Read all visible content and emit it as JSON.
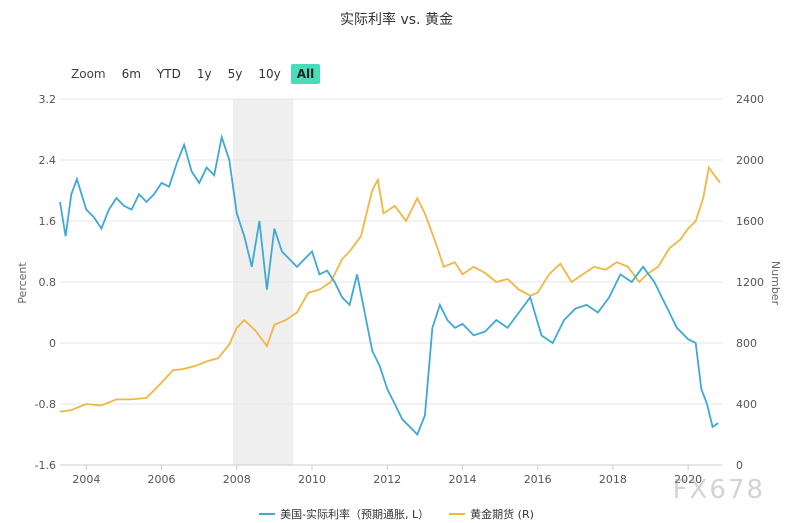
{
  "title": "实际利率 vs. 黄金",
  "zoom": {
    "label": "Zoom",
    "buttons": [
      "6m",
      "YTD",
      "1y",
      "5y",
      "10y",
      "All"
    ],
    "active": "All"
  },
  "watermark": "FX678",
  "colors": {
    "real_rate": "#3fa9d4",
    "gold": "#f2b743",
    "shade": "#efefef"
  },
  "chart_data": {
    "type": "line",
    "x_ticks": [
      "2004",
      "2006",
      "2008",
      "2010",
      "2012",
      "2014",
      "2016",
      "2018",
      "2020"
    ],
    "xlim": [
      2003.3,
      2020.9
    ],
    "shaded_region": [
      2007.9,
      2009.5
    ],
    "left_axis": {
      "label": "Percent",
      "ticks": [
        "3.2",
        "2.4",
        "1.6",
        "0.8",
        "0",
        "-0.8",
        "-1.6"
      ],
      "ylim": [
        -1.6,
        3.2
      ]
    },
    "right_axis": {
      "label": "Number",
      "ticks": [
        "2400",
        "2000",
        "1600",
        "1200",
        "800",
        "400",
        "0"
      ],
      "ylim": [
        0,
        2400
      ]
    },
    "grid": true,
    "legend_position": "bottom",
    "series": [
      {
        "name": "美国-实际利率（预期通胀, L）",
        "axis": "left",
        "x": [
          2003.3,
          2003.45,
          2003.6,
          2003.75,
          2004.0,
          2004.2,
          2004.4,
          2004.6,
          2004.8,
          2005.0,
          2005.2,
          2005.4,
          2005.6,
          2005.8,
          2006.0,
          2006.2,
          2006.4,
          2006.6,
          2006.8,
          2007.0,
          2007.2,
          2007.4,
          2007.6,
          2007.8,
          2008.0,
          2008.2,
          2008.4,
          2008.6,
          2008.8,
          2009.0,
          2009.2,
          2009.4,
          2009.6,
          2009.8,
          2010.0,
          2010.2,
          2010.4,
          2010.6,
          2010.8,
          2011.0,
          2011.2,
          2011.4,
          2011.6,
          2011.8,
          2012.0,
          2012.2,
          2012.4,
          2012.6,
          2012.8,
          2013.0,
          2013.2,
          2013.4,
          2013.6,
          2013.8,
          2014.0,
          2014.3,
          2014.6,
          2014.9,
          2015.2,
          2015.5,
          2015.8,
          2016.1,
          2016.4,
          2016.7,
          2017.0,
          2017.3,
          2017.6,
          2017.9,
          2018.2,
          2018.5,
          2018.8,
          2019.1,
          2019.4,
          2019.7,
          2020.0,
          2020.2,
          2020.35,
          2020.5,
          2020.65,
          2020.8
        ],
        "values": [
          1.85,
          1.4,
          1.95,
          2.15,
          1.75,
          1.65,
          1.5,
          1.75,
          1.9,
          1.8,
          1.75,
          1.95,
          1.85,
          1.95,
          2.1,
          2.05,
          2.35,
          2.6,
          2.25,
          2.1,
          2.3,
          2.2,
          2.7,
          2.4,
          1.7,
          1.4,
          1.0,
          1.6,
          0.7,
          1.5,
          1.2,
          1.1,
          1.0,
          1.1,
          1.2,
          0.9,
          0.95,
          0.8,
          0.6,
          0.5,
          0.9,
          0.4,
          -0.1,
          -0.3,
          -0.6,
          -0.8,
          -1.0,
          -1.1,
          -1.2,
          -0.95,
          0.2,
          0.5,
          0.3,
          0.2,
          0.25,
          0.1,
          0.15,
          0.3,
          0.2,
          0.4,
          0.6,
          0.1,
          0.0,
          0.3,
          0.45,
          0.5,
          0.4,
          0.6,
          0.9,
          0.8,
          1.0,
          0.8,
          0.5,
          0.2,
          0.05,
          0.0,
          -0.6,
          -0.8,
          -1.1,
          -1.05
        ]
      },
      {
        "name": "黄金期货 (R)",
        "axis": "right",
        "x": [
          2003.3,
          2003.6,
          2004.0,
          2004.4,
          2004.8,
          2005.2,
          2005.6,
          2006.0,
          2006.3,
          2006.6,
          2006.9,
          2007.2,
          2007.5,
          2007.8,
          2008.0,
          2008.2,
          2008.5,
          2008.8,
          2009.0,
          2009.3,
          2009.6,
          2009.9,
          2010.2,
          2010.5,
          2010.8,
          2011.0,
          2011.3,
          2011.6,
          2011.75,
          2011.9,
          2012.2,
          2012.5,
          2012.8,
          2013.0,
          2013.3,
          2013.5,
          2013.8,
          2014.0,
          2014.3,
          2014.6,
          2014.9,
          2015.2,
          2015.5,
          2015.8,
          2016.0,
          2016.3,
          2016.6,
          2016.9,
          2017.2,
          2017.5,
          2017.8,
          2018.1,
          2018.4,
          2018.7,
          2018.9,
          2019.2,
          2019.5,
          2019.8,
          2020.0,
          2020.2,
          2020.4,
          2020.55,
          2020.7,
          2020.85
        ],
        "values": [
          350,
          360,
          400,
          390,
          430,
          430,
          440,
          540,
          620,
          630,
          650,
          680,
          700,
          790,
          900,
          950,
          880,
          780,
          920,
          950,
          1000,
          1130,
          1150,
          1200,
          1350,
          1400,
          1500,
          1800,
          1870,
          1650,
          1700,
          1600,
          1750,
          1650,
          1450,
          1300,
          1330,
          1250,
          1300,
          1260,
          1200,
          1220,
          1150,
          1110,
          1130,
          1250,
          1320,
          1200,
          1250,
          1300,
          1280,
          1330,
          1300,
          1200,
          1250,
          1300,
          1420,
          1480,
          1550,
          1600,
          1750,
          1950,
          1900,
          1850
        ]
      }
    ]
  }
}
